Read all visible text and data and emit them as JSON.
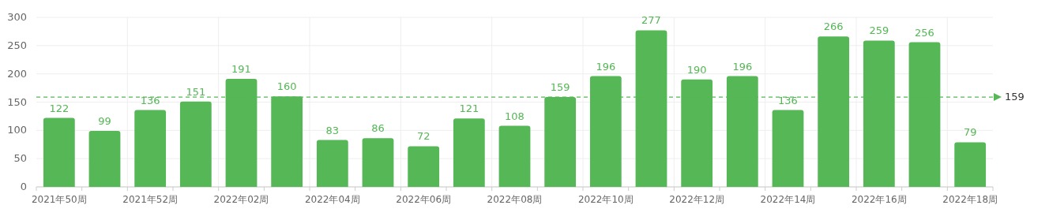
{
  "chart_data": {
    "type": "bar",
    "categories": [
      "2021年50周",
      null,
      "2021年52周",
      null,
      "2022年02周",
      null,
      "2022年04周",
      null,
      "2022年06周",
      null,
      "2022年08周",
      null,
      "2022年10周",
      null,
      "2022年12周",
      null,
      "2022年14周",
      null,
      "2022年16周",
      null,
      "2022年18周"
    ],
    "values": [
      122,
      99,
      136,
      151,
      191,
      160,
      83,
      86,
      72,
      121,
      108,
      159,
      196,
      277,
      190,
      196,
      136,
      266,
      259,
      256,
      79
    ],
    "color": "#55b756",
    "ylim": [
      0,
      300
    ],
    "yticks": [
      0,
      50,
      100,
      150,
      200,
      250,
      300
    ],
    "grid": true,
    "data_labels": true,
    "ref_lines": [
      {
        "axis": "y",
        "value": 159,
        "label": "159",
        "color": "#55b756",
        "line_style": "dashed"
      }
    ]
  }
}
